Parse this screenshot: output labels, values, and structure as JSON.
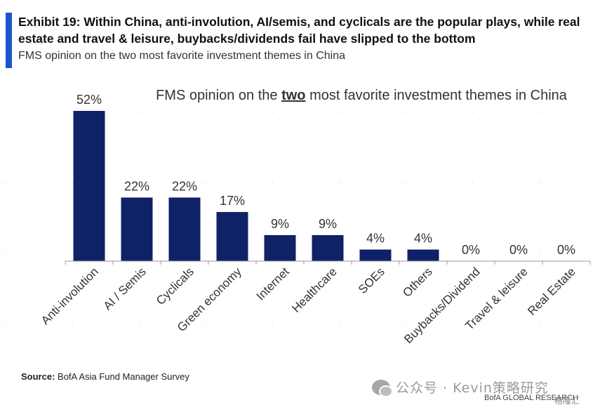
{
  "header": {
    "title": "Exhibit 19: Within China, anti-involution, AI/semis, and cyclicals are the popular plays, while real estate and travel & leisure, buybacks/dividends fail have slipped to the bottom",
    "subtitle": "FMS opinion on the two most favorite investment themes in China",
    "accent_color": "#1a56c9"
  },
  "chart_data": {
    "type": "bar",
    "title_before": "FMS opinion on the ",
    "title_emphasis": "two",
    "title_after": " most favorite investment themes in China",
    "categories": [
      "Anti-involution",
      "AI / Semis",
      "Cyclicals",
      "Green economy",
      "Internet",
      "Healthcare",
      "SOEs",
      "Others",
      "Buybacks/Dividend",
      "Travel & leisure",
      "Real Estate"
    ],
    "values": [
      52,
      22,
      22,
      17,
      9,
      9,
      4,
      4,
      0,
      0,
      0
    ],
    "value_labels": [
      "52%",
      "22%",
      "22%",
      "17%",
      "9%",
      "9%",
      "4%",
      "4%",
      "0%",
      "0%",
      "0%"
    ],
    "ylim": [
      0,
      52
    ],
    "bar_color": "#0f2167",
    "grid": false,
    "legend": "none"
  },
  "footer": {
    "source_label": "Source:",
    "source_text": "BofA Asia Fund Manager Survey",
    "watermark": "公众号 · Kevin策略研究",
    "brand": "BofA GLOBAL RESEARCH",
    "corner_logo": "格隆汇"
  }
}
